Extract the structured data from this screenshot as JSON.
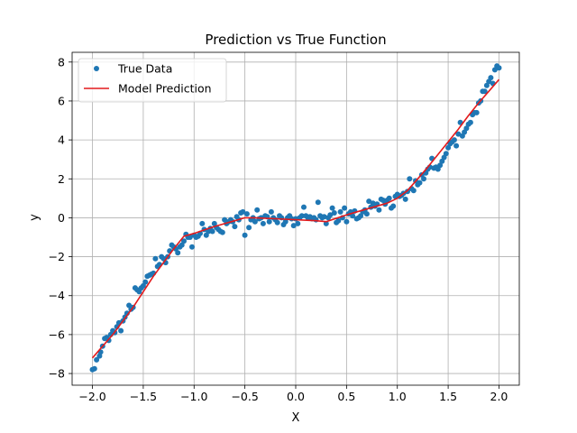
{
  "chart_data": {
    "type": "scatter",
    "title": "Prediction vs True Function",
    "xlabel": "X",
    "ylabel": "y",
    "xlim": [
      -2.2,
      2.2
    ],
    "ylim": [
      -8.6,
      8.5
    ],
    "xticks": [
      -2.0,
      -1.5,
      -1.0,
      -0.5,
      0.0,
      0.5,
      1.0,
      1.5,
      2.0
    ],
    "xtick_labels": [
      "−2.0",
      "−1.5",
      "−1.0",
      "−0.5",
      "0.0",
      "0.5",
      "1.0",
      "1.5",
      "2.0"
    ],
    "yticks": [
      -8,
      -6,
      -4,
      -2,
      0,
      2,
      4,
      6,
      8
    ],
    "ytick_labels": [
      "−8",
      "−6",
      "−4",
      "−2",
      "0",
      "2",
      "4",
      "6",
      "8"
    ],
    "grid": true,
    "legend_position": "top-left",
    "series": [
      {
        "name": "True Data",
        "kind": "scatter",
        "color": "#1f77b4",
        "points": [
          [
            -2.0,
            -7.8
          ],
          [
            -1.98,
            -7.75
          ],
          [
            -1.96,
            -7.3
          ],
          [
            -1.93,
            -7.1
          ],
          [
            -1.92,
            -6.9
          ],
          [
            -1.9,
            -6.6
          ],
          [
            -1.88,
            -6.2
          ],
          [
            -1.86,
            -6.15
          ],
          [
            -1.84,
            -6.3
          ],
          [
            -1.82,
            -6.0
          ],
          [
            -1.8,
            -5.8
          ],
          [
            -1.78,
            -5.9
          ],
          [
            -1.76,
            -5.6
          ],
          [
            -1.74,
            -5.4
          ],
          [
            -1.72,
            -5.8
          ],
          [
            -1.7,
            -5.3
          ],
          [
            -1.68,
            -5.1
          ],
          [
            -1.66,
            -4.9
          ],
          [
            -1.64,
            -4.5
          ],
          [
            -1.62,
            -4.7
          ],
          [
            -1.6,
            -4.6
          ],
          [
            -1.58,
            -3.6
          ],
          [
            -1.56,
            -3.7
          ],
          [
            -1.54,
            -3.8
          ],
          [
            -1.52,
            -3.6
          ],
          [
            -1.5,
            -3.5
          ],
          [
            -1.48,
            -3.3
          ],
          [
            -1.46,
            -3.0
          ],
          [
            -1.44,
            -2.95
          ],
          [
            -1.42,
            -2.9
          ],
          [
            -1.4,
            -2.85
          ],
          [
            -1.38,
            -2.1
          ],
          [
            -1.36,
            -2.5
          ],
          [
            -1.34,
            -2.4
          ],
          [
            -1.32,
            -2.0
          ],
          [
            -1.3,
            -2.1
          ],
          [
            -1.28,
            -2.3
          ],
          [
            -1.26,
            -2.0
          ],
          [
            -1.24,
            -1.7
          ],
          [
            -1.22,
            -1.4
          ],
          [
            -1.2,
            -1.5
          ],
          [
            -1.18,
            -1.6
          ],
          [
            -1.16,
            -1.8
          ],
          [
            -1.14,
            -1.5
          ],
          [
            -1.12,
            -1.4
          ],
          [
            -1.1,
            -1.2
          ],
          [
            -1.08,
            -0.85
          ],
          [
            -1.06,
            -1.0
          ],
          [
            -1.04,
            -1.0
          ],
          [
            -1.02,
            -1.5
          ],
          [
            -1.0,
            -0.9
          ],
          [
            -0.98,
            -1.0
          ],
          [
            -0.96,
            -0.95
          ],
          [
            -0.94,
            -0.8
          ],
          [
            -0.92,
            -0.3
          ],
          [
            -0.9,
            -0.6
          ],
          [
            -0.88,
            -0.9
          ],
          [
            -0.86,
            -0.7
          ],
          [
            -0.84,
            -0.55
          ],
          [
            -0.82,
            -0.7
          ],
          [
            -0.8,
            -0.3
          ],
          [
            -0.78,
            -0.5
          ],
          [
            -0.76,
            -0.6
          ],
          [
            -0.74,
            -0.7
          ],
          [
            -0.72,
            -0.75
          ],
          [
            -0.7,
            -0.1
          ],
          [
            -0.68,
            -0.3
          ],
          [
            -0.66,
            -0.2
          ],
          [
            -0.64,
            -0.1
          ],
          [
            -0.62,
            -0.2
          ],
          [
            -0.6,
            -0.45
          ],
          [
            -0.58,
            0.05
          ],
          [
            -0.56,
            -0.1
          ],
          [
            -0.54,
            0.25
          ],
          [
            -0.52,
            0.3
          ],
          [
            -0.5,
            -0.9
          ],
          [
            -0.48,
            0.2
          ],
          [
            -0.46,
            -0.5
          ],
          [
            -0.44,
            -0.1
          ],
          [
            -0.42,
            0.0
          ],
          [
            -0.4,
            -0.2
          ],
          [
            -0.38,
            0.4
          ],
          [
            -0.36,
            -0.05
          ],
          [
            -0.34,
            0.0
          ],
          [
            -0.32,
            -0.3
          ],
          [
            -0.3,
            0.1
          ],
          [
            -0.28,
            0.05
          ],
          [
            -0.26,
            -0.2
          ],
          [
            -0.24,
            0.3
          ],
          [
            -0.22,
            0.0
          ],
          [
            -0.2,
            -0.1
          ],
          [
            -0.18,
            -0.25
          ],
          [
            -0.16,
            0.1
          ],
          [
            -0.14,
            0.0
          ],
          [
            -0.12,
            -0.35
          ],
          [
            -0.1,
            -0.2
          ],
          [
            -0.08,
            0.0
          ],
          [
            -0.06,
            0.1
          ],
          [
            -0.04,
            -0.05
          ],
          [
            -0.02,
            -0.4
          ],
          [
            0.0,
            -0.05
          ],
          [
            0.02,
            -0.3
          ],
          [
            0.04,
            0.0
          ],
          [
            0.06,
            0.1
          ],
          [
            0.08,
            0.55
          ],
          [
            0.1,
            0.1
          ],
          [
            0.12,
            0.0
          ],
          [
            0.14,
            0.05
          ],
          [
            0.16,
            -0.05
          ],
          [
            0.18,
            0.0
          ],
          [
            0.2,
            -0.1
          ],
          [
            0.22,
            0.8
          ],
          [
            0.24,
            0.1
          ],
          [
            0.26,
            0.0
          ],
          [
            0.28,
            0.05
          ],
          [
            0.3,
            -0.3
          ],
          [
            0.32,
            0.0
          ],
          [
            0.34,
            0.15
          ],
          [
            0.36,
            0.5
          ],
          [
            0.38,
            0.25
          ],
          [
            0.4,
            -0.25
          ],
          [
            0.42,
            -0.15
          ],
          [
            0.44,
            0.3
          ],
          [
            0.46,
            0.0
          ],
          [
            0.48,
            0.5
          ],
          [
            0.5,
            -0.2
          ],
          [
            0.52,
            0.2
          ],
          [
            0.54,
            0.3
          ],
          [
            0.56,
            0.1
          ],
          [
            0.58,
            0.35
          ],
          [
            0.6,
            -0.05
          ],
          [
            0.62,
            0.0
          ],
          [
            0.64,
            0.1
          ],
          [
            0.66,
            0.3
          ],
          [
            0.68,
            0.4
          ],
          [
            0.7,
            0.2
          ],
          [
            0.72,
            0.85
          ],
          [
            0.74,
            0.55
          ],
          [
            0.76,
            0.75
          ],
          [
            0.78,
            0.6
          ],
          [
            0.8,
            0.7
          ],
          [
            0.82,
            0.4
          ],
          [
            0.84,
            0.95
          ],
          [
            0.86,
            0.9
          ],
          [
            0.88,
            0.7
          ],
          [
            0.9,
            0.9
          ],
          [
            0.92,
            1.0
          ],
          [
            0.94,
            0.5
          ],
          [
            0.96,
            0.6
          ],
          [
            0.98,
            1.1
          ],
          [
            1.0,
            1.2
          ],
          [
            1.02,
            1.1
          ],
          [
            1.04,
            1.15
          ],
          [
            1.06,
            1.25
          ],
          [
            1.08,
            0.95
          ],
          [
            1.1,
            1.35
          ],
          [
            1.12,
            2.0
          ],
          [
            1.14,
            1.5
          ],
          [
            1.16,
            1.4
          ],
          [
            1.18,
            1.9
          ],
          [
            1.2,
            1.7
          ],
          [
            1.22,
            1.8
          ],
          [
            1.24,
            2.2
          ],
          [
            1.26,
            2.0
          ],
          [
            1.28,
            2.3
          ],
          [
            1.3,
            2.5
          ],
          [
            1.32,
            2.6
          ],
          [
            1.34,
            3.05
          ],
          [
            1.36,
            2.55
          ],
          [
            1.38,
            2.6
          ],
          [
            1.4,
            2.5
          ],
          [
            1.42,
            2.7
          ],
          [
            1.44,
            2.9
          ],
          [
            1.46,
            3.1
          ],
          [
            1.48,
            3.3
          ],
          [
            1.5,
            3.6
          ],
          [
            1.52,
            3.8
          ],
          [
            1.54,
            3.9
          ],
          [
            1.56,
            4.0
          ],
          [
            1.58,
            3.7
          ],
          [
            1.6,
            4.3
          ],
          [
            1.62,
            4.9
          ],
          [
            1.64,
            4.2
          ],
          [
            1.66,
            4.4
          ],
          [
            1.68,
            4.6
          ],
          [
            1.7,
            4.8
          ],
          [
            1.72,
            4.9
          ],
          [
            1.74,
            5.3
          ],
          [
            1.76,
            5.4
          ],
          [
            1.78,
            5.4
          ],
          [
            1.8,
            5.9
          ],
          [
            1.82,
            6.0
          ],
          [
            1.84,
            6.5
          ],
          [
            1.86,
            6.5
          ],
          [
            1.88,
            6.8
          ],
          [
            1.9,
            7.0
          ],
          [
            1.92,
            7.2
          ],
          [
            1.94,
            6.9
          ],
          [
            1.96,
            7.6
          ],
          [
            1.98,
            7.8
          ],
          [
            2.0,
            7.7
          ]
        ]
      },
      {
        "name": "Model Prediction",
        "kind": "line",
        "color": "#e31a1c",
        "points": [
          [
            -2.0,
            -7.2
          ],
          [
            -1.8,
            -6.0
          ],
          [
            -1.6,
            -4.6
          ],
          [
            -1.4,
            -3.0
          ],
          [
            -1.2,
            -1.6
          ],
          [
            -1.1,
            -0.95
          ],
          [
            -1.0,
            -0.8
          ],
          [
            -0.8,
            -0.45
          ],
          [
            -0.6,
            -0.15
          ],
          [
            -0.5,
            0.0
          ],
          [
            -0.4,
            0.0
          ],
          [
            -0.2,
            -0.05
          ],
          [
            0.0,
            -0.1
          ],
          [
            0.2,
            -0.15
          ],
          [
            0.3,
            -0.2
          ],
          [
            0.5,
            0.15
          ],
          [
            0.7,
            0.45
          ],
          [
            0.9,
            0.75
          ],
          [
            1.0,
            1.0
          ],
          [
            1.1,
            1.4
          ],
          [
            1.2,
            2.0
          ],
          [
            1.3,
            2.6
          ],
          [
            1.4,
            3.25
          ],
          [
            1.5,
            3.9
          ],
          [
            1.6,
            4.55
          ],
          [
            1.7,
            5.25
          ],
          [
            1.8,
            5.9
          ],
          [
            1.9,
            6.5
          ],
          [
            2.0,
            7.1
          ]
        ]
      }
    ]
  }
}
